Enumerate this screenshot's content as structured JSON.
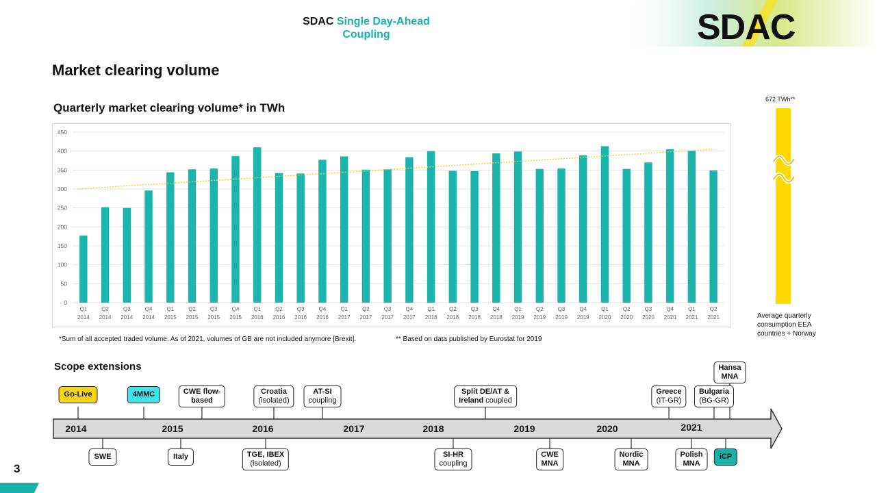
{
  "header": {
    "brand_acronym": "SDAC",
    "brand_line1": "Single Day-Ahead",
    "brand_line2": "Coupling",
    "logo": "SDAC"
  },
  "page_title": "Market clearing volume",
  "chart_title": "Quarterly market clearing volume* in TWh",
  "footnotes": {
    "sum_note": "*Sum of all accepted traded volume. As of 2021, volumes of GB are not included anymore [Brexit].",
    "eurostat_note": "** Based on data published by Eurostat for 2019"
  },
  "consumption": {
    "label": "672 TWh**",
    "caption_lines": [
      "Average quarterly",
      "consumption  EEA",
      "countries + Norway"
    ],
    "value": 672,
    "color": "#fcd900"
  },
  "chart_data": {
    "type": "bar",
    "categories": [
      [
        "Q1",
        "2014"
      ],
      [
        "Q2",
        "2014"
      ],
      [
        "Q3",
        "2014"
      ],
      [
        "Q4",
        "2014"
      ],
      [
        "Q1",
        "2015"
      ],
      [
        "Q2",
        "2015"
      ],
      [
        "Q3",
        "2015"
      ],
      [
        "Q4",
        "2015"
      ],
      [
        "Q1",
        "2016"
      ],
      [
        "Q2",
        "2016"
      ],
      [
        "Q3",
        "2016"
      ],
      [
        "Q4",
        "2016"
      ],
      [
        "Q1",
        "2017"
      ],
      [
        "Q2",
        "2017"
      ],
      [
        "Q3",
        "2017"
      ],
      [
        "Q4",
        "2017"
      ],
      [
        "Q1",
        "2018"
      ],
      [
        "Q2",
        "2018"
      ],
      [
        "Q3",
        "2018"
      ],
      [
        "Q4",
        "2018"
      ],
      [
        "Q1",
        "2019"
      ],
      [
        "Q2",
        "2019"
      ],
      [
        "Q3",
        "2019"
      ],
      [
        "Q4",
        "2019"
      ],
      [
        "Q1",
        "2020"
      ],
      [
        "Q2",
        "2020"
      ],
      [
        "Q3",
        "2020"
      ],
      [
        "Q4",
        "2020"
      ],
      [
        "Q1",
        "2021"
      ],
      [
        "Q2",
        "2021"
      ]
    ],
    "values": [
      177,
      252,
      250,
      296,
      344,
      352,
      354,
      387,
      410,
      342,
      341,
      377,
      386,
      351,
      352,
      384,
      400,
      348,
      347,
      394,
      399,
      353,
      354,
      389,
      413,
      353,
      370,
      405,
      401,
      349
    ],
    "ylim": [
      0,
      450
    ],
    "yticks": [
      0,
      50,
      100,
      150,
      200,
      250,
      300,
      350,
      400,
      450
    ],
    "trendline": [
      300,
      405
    ],
    "grid": true,
    "bar_color": "#1cb5ad",
    "trend_color": "#f2c81e"
  },
  "timeline": {
    "title": "Scope extensions",
    "years": [
      "2014",
      "2015",
      "2016",
      "2017",
      "2018",
      "2019",
      "2020",
      "2021"
    ],
    "events_above": [
      {
        "bold": "Go-Live",
        "normal": "",
        "style": "yellow"
      },
      {
        "bold": "4MMC",
        "normal": "",
        "style": "cyan"
      },
      {
        "bold": "CWE flow-",
        "normal": "based",
        "style": "plain"
      },
      {
        "bold": "Croatia",
        "normal": "(isolated)",
        "style": "plain"
      },
      {
        "bold": "AT-SI",
        "normal": "coupling",
        "style": "plain"
      },
      {
        "bold": "Split DE/AT &",
        "normal_bold": "Ireland",
        "normal": " coupled",
        "style": "plain"
      },
      {
        "bold": "Greece",
        "normal": "(IT-GR)",
        "style": "plain"
      },
      {
        "bold": "Bulgaria",
        "normal": "(BG-GR)",
        "style": "plain"
      },
      {
        "bold": "Hansa",
        "normal": "MNA",
        "style": "plain"
      }
    ],
    "events_below": [
      {
        "bold": "SWE",
        "normal": "",
        "style": "plain"
      },
      {
        "bold": "Italy",
        "normal": "",
        "style": "plain"
      },
      {
        "bold": "TGE, IBEX",
        "normal": "(isolated)",
        "style": "plain"
      },
      {
        "bold": "SI-HR",
        "normal": "coupling",
        "style": "plain"
      },
      {
        "bold": "CWE",
        "normal": "MNA",
        "style": "plain"
      },
      {
        "bold": "Nordic",
        "normal": "MNA",
        "style": "plain"
      },
      {
        "bold": "Polish",
        "normal": "MNA",
        "style": "plain"
      },
      {
        "bold": "iCP",
        "normal": "",
        "style": "teal"
      }
    ]
  },
  "page_number": "3"
}
